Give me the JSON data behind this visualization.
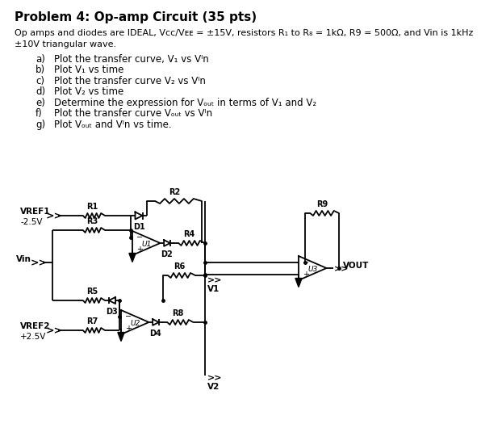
{
  "title": "Problem 4: Op-amp Circuit (35 pts)",
  "desc1": "Op amps and diodes are IDEAL, Vᴄᴄ/Vᴇᴇ = ±15V, resistors R₁ to R₈ = 1kΩ, R9 = 500Ω, and Vin is 1kHz",
  "desc2": "±10V triangular wave.",
  "items": [
    [
      "a)",
      "Plot the transfer curve, V₁ vs Vᴵn"
    ],
    [
      "b)",
      "Plot V₁ vs time"
    ],
    [
      "c)",
      "Plot the transfer curve V₂ vs Vᴵn"
    ],
    [
      "d)",
      "Plot V₂ vs time"
    ],
    [
      "e)",
      "Determine the expression for Vₒᵤₜ in terms of V₁ and V₂"
    ],
    [
      "f)",
      "Plot the transfer curve Vₒᵤₜ vs Vᴵn"
    ],
    [
      "g)",
      "Plot Vₒᵤₜ and Vᴵn vs time."
    ]
  ]
}
